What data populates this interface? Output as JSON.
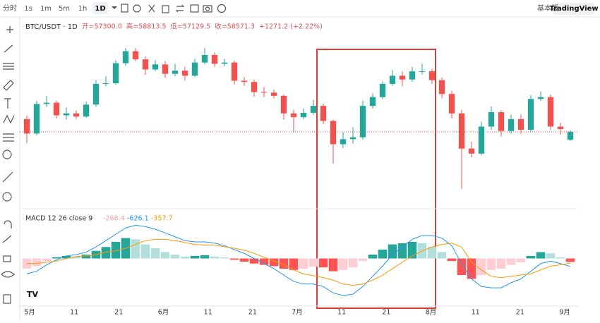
{
  "toolbar": {
    "intervals": [
      "分时",
      "1s",
      "1m",
      "5m",
      "1h",
      "1D"
    ],
    "active": 5,
    "right": [
      "基本版",
      "TradingView"
    ]
  },
  "chart_data": {
    "type": "candlestick",
    "symbol": "BTC/USDT · 1D",
    "legend": [
      "开=57300.0",
      "高=58813.5",
      "低=57129.5",
      "收=58571.3",
      "+1271.2 (+2.22%)"
    ],
    "up_color": "#26a69a",
    "down_color": "#ef5350",
    "ylim": [
      47000,
      74500
    ],
    "candles": [
      [
        60600,
        61200,
        56800,
        58300
      ],
      [
        58300,
        63500,
        58000,
        63000
      ],
      [
        63000,
        64300,
        62500,
        63200
      ],
      [
        63200,
        63500,
        60700,
        61200
      ],
      [
        61200,
        62400,
        60500,
        61500
      ],
      [
        61500,
        62000,
        60600,
        61000
      ],
      [
        61000,
        63400,
        60800,
        62900
      ],
      [
        62900,
        66800,
        62600,
        66200
      ],
      [
        66200,
        67400,
        65800,
        66300
      ],
      [
        66300,
        70000,
        66100,
        69500
      ],
      [
        69500,
        71900,
        69100,
        71400
      ],
      [
        71400,
        71900,
        69800,
        70100
      ],
      [
        70100,
        70600,
        67600,
        68500
      ],
      [
        68500,
        70000,
        68200,
        69300
      ],
      [
        69300,
        69800,
        67200,
        67800
      ],
      [
        67800,
        69400,
        67400,
        68300
      ],
      [
        68300,
        68900,
        66700,
        67500
      ],
      [
        67500,
        70200,
        67300,
        69600
      ],
      [
        69600,
        71900,
        69300,
        70800
      ],
      [
        70800,
        71200,
        68900,
        69400
      ],
      [
        69400,
        70200,
        69000,
        69600
      ],
      [
        69600,
        69900,
        66100,
        66700
      ],
      [
        66700,
        67300,
        65900,
        66500
      ],
      [
        66500,
        66900,
        64200,
        64900
      ],
      [
        64900,
        65700,
        64100,
        64800
      ],
      [
        64800,
        65300,
        63900,
        64300
      ],
      [
        64300,
        64500,
        60500,
        61500
      ],
      [
        61500,
        62100,
        58500,
        60900
      ],
      [
        60900,
        62300,
        60600,
        61600
      ],
      [
        61600,
        63700,
        61300,
        62700
      ],
      [
        62700,
        63100,
        59800,
        60300
      ],
      [
        60300,
        60500,
        53500,
        56600
      ],
      [
        56600,
        58500,
        56000,
        57400
      ],
      [
        57400,
        59300,
        56700,
        57700
      ],
      [
        57700,
        63500,
        57300,
        62700
      ],
      [
        62700,
        64700,
        62300,
        64100
      ],
      [
        64100,
        66600,
        63800,
        66200
      ],
      [
        66200,
        68400,
        65900,
        67500
      ],
      [
        67500,
        68200,
        65800,
        66900
      ],
      [
        66900,
        68900,
        66600,
        68200
      ],
      [
        68200,
        69400,
        67700,
        68200
      ],
      [
        68200,
        68600,
        66200,
        66800
      ],
      [
        66800,
        67200,
        63900,
        64600
      ],
      [
        64600,
        65100,
        60700,
        61500
      ],
      [
        61500,
        62100,
        49500,
        55900
      ],
      [
        55900,
        57000,
        54500,
        55100
      ],
      [
        55100,
        60200,
        54800,
        59400
      ],
      [
        59400,
        62600,
        58900,
        61700
      ],
      [
        61700,
        62000,
        57800,
        58700
      ],
      [
        58700,
        61300,
        58300,
        60600
      ],
      [
        60600,
        61300,
        58300,
        58900
      ],
      [
        58900,
        64400,
        58600,
        63800
      ],
      [
        63800,
        65000,
        63500,
        64100
      ],
      [
        64100,
        64500,
        58900,
        59400
      ],
      [
        59400,
        60000,
        58100,
        59000
      ],
      [
        57300,
        58813.5,
        57129.5,
        58571.3
      ]
    ],
    "x_labels": [
      "5月",
      "11",
      "21",
      "6月",
      "11",
      "21",
      "7月",
      "11",
      "21",
      "8月",
      "11",
      "21",
      "9月"
    ],
    "macd": {
      "title": "MACD 12 26 close 9",
      "ylim": [
        -3400,
        3400
      ],
      "line_color": "#2196f3",
      "signal_color": "#ff9800",
      "hist_colors": [
        "#26a69a",
        "#b2dfdb",
        "#ffcdd2",
        "#ff5252"
      ],
      "hist": [
        -800,
        -600,
        -200,
        100,
        200,
        150,
        300,
        600,
        900,
        1300,
        1600,
        1500,
        1100,
        800,
        500,
        300,
        150,
        200,
        250,
        150,
        80,
        -100,
        -250,
        -400,
        -500,
        -600,
        -800,
        -900,
        -800,
        -650,
        -700,
        -1000,
        -900,
        -700,
        -200,
        300,
        700,
        1100,
        1200,
        1300,
        1200,
        900,
        500,
        -200,
        -1300,
        -1600,
        -1300,
        -900,
        -800,
        -500,
        -300,
        200,
        500,
        400,
        100,
        -268.4
      ],
      "line": [
        -1200,
        -1000,
        -500,
        -100,
        200,
        300,
        500,
        900,
        1400,
        1900,
        2400,
        2600,
        2500,
        2300,
        2000,
        1700,
        1400,
        1300,
        1300,
        1200,
        1000,
        700,
        400,
        0,
        -400,
        -800,
        -1300,
        -1800,
        -2000,
        -2000,
        -2200,
        -2700,
        -2900,
        -2800,
        -2200,
        -1400,
        -600,
        300,
        900,
        1500,
        1800,
        1800,
        1600,
        1000,
        -400,
        -1600,
        -2200,
        -2300,
        -2300,
        -1900,
        -1600,
        -1000,
        -400,
        -200,
        -400,
        -626.1
      ],
      "signal": [
        -400,
        -400,
        -300,
        -200,
        0,
        150,
        200,
        300,
        500,
        600,
        800,
        1100,
        1400,
        1500,
        1500,
        1400,
        1250,
        1100,
        1050,
        1050,
        920,
        800,
        650,
        400,
        100,
        -200,
        -500,
        -900,
        -1200,
        -1350,
        -1500,
        -1700,
        -2000,
        -2100,
        -2000,
        -1700,
        -1300,
        -800,
        -300,
        200,
        600,
        900,
        1100,
        1200,
        900,
        -300,
        -900,
        -1400,
        -1500,
        -1400,
        -1300,
        -1200,
        -900,
        -600,
        -500,
        -357.7
      ]
    }
  }
}
